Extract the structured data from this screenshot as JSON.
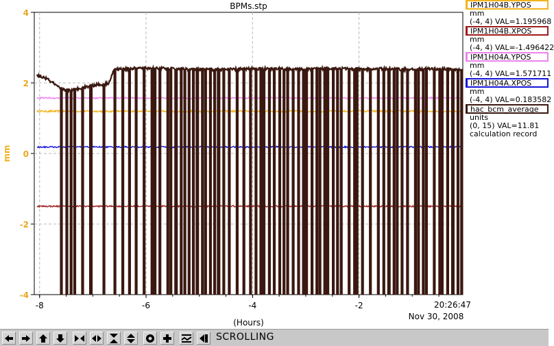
{
  "chart_data": {
    "type": "line",
    "title": "BPMs.stp",
    "xlabel": "(Hours)",
    "ylabel": "mm",
    "xlim": [
      -8.1,
      -0.05
    ],
    "ylim": [
      -4,
      4
    ],
    "x_ticks": [
      -8,
      -6,
      -4,
      -2
    ],
    "y_ticks": [
      -4,
      -2,
      0,
      2,
      4
    ],
    "timestamp_time": "20:26:47",
    "timestamp_date": "Nov 30, 2008",
    "grid": true,
    "colors": {
      "axis_label": "#f0b020",
      "tick_label": "#e8a820"
    },
    "series": [
      {
        "name": "IPM1H04B.YPOS",
        "color": "#f2b31c",
        "level": 1.196,
        "noise": 0.025,
        "units": "mm",
        "range": "(-4, 4)",
        "val": "VAL=1.195968",
        "dropouts": true
      },
      {
        "name": "IPM1H04B.XPOS",
        "color": "#a01c1c",
        "level": -1.496,
        "noise": 0.02,
        "units": "mm",
        "range": "(-4, 4)",
        "val": "VAL=-1.496422",
        "dropouts": false
      },
      {
        "name": "IPM1H04A.YPOS",
        "color": "#ee82ee",
        "level": 1.572,
        "noise": 0.02,
        "units": "mm",
        "range": "(-4, 4)",
        "val": "VAL=1.571711",
        "dropouts": false
      },
      {
        "name": "IPM1H04A.XPOS",
        "color": "#1414dc",
        "level": 0.184,
        "noise": 0.02,
        "units": "mm",
        "range": "(-4, 4)",
        "val": "VAL=0.183582",
        "dropouts": false
      },
      {
        "name": "hac_bcm_average",
        "color": "#3a1810",
        "units": "units",
        "range": "(0, 15)",
        "val": "VAL=11.81",
        "note": "calculation record",
        "profile_x": [
          -8.05,
          -7.9,
          -7.75,
          -7.6,
          -7.5,
          -7.4,
          -7.25,
          -7.1,
          -6.95,
          -6.8,
          -6.7,
          -6.6,
          -6.4,
          -6.0,
          -5.5,
          -5.0,
          -4.5,
          -4.0,
          -3.5,
          -3.0,
          -2.5,
          -2.0,
          -1.5,
          -1.0,
          -0.5,
          -0.05
        ],
        "profile_y": [
          2.2,
          2.15,
          2.0,
          1.82,
          1.8,
          1.78,
          1.85,
          1.9,
          1.95,
          1.95,
          2.0,
          2.38,
          2.4,
          2.42,
          2.4,
          2.38,
          2.38,
          2.4,
          2.4,
          2.38,
          2.42,
          2.38,
          2.4,
          2.38,
          2.4,
          2.36
        ],
        "dropouts": [
          -7.6,
          -7.5,
          -7.42,
          -7.35,
          -7.2,
          -7.05,
          -6.8,
          -6.6,
          -6.45,
          -6.32,
          -6.2,
          -6.05,
          -5.9,
          -5.85,
          -5.75,
          -5.6,
          -5.55,
          -5.45,
          -5.35,
          -5.28,
          -5.2,
          -5.12,
          -5.05,
          -4.95,
          -4.9,
          -4.8,
          -4.72,
          -4.65,
          -4.55,
          -4.45,
          -4.3,
          -4.18,
          -4.05,
          -3.95,
          -3.85,
          -3.8,
          -3.7,
          -3.6,
          -3.5,
          -3.42,
          -3.35,
          -3.25,
          -3.15,
          -3.05,
          -3.0,
          -2.9,
          -2.8,
          -2.75,
          -2.65,
          -2.6,
          -2.5,
          -2.42,
          -2.35,
          -2.2,
          -2.1,
          -2.05,
          -1.95,
          -1.8,
          -1.65,
          -1.55,
          -1.45,
          -1.35,
          -1.3,
          -1.2,
          -1.1,
          -0.95,
          -0.9,
          -0.8,
          -0.75,
          -0.6,
          -0.5,
          -0.45,
          -0.35,
          -0.25,
          -0.15,
          -0.08
        ]
      }
    ]
  },
  "toolbar": {
    "mode_label": "SCROLLING",
    "buttons": [
      "left-arrow-icon",
      "right-arrow-icon",
      "up-arrow-icon",
      "down-arrow-icon",
      "zoom-in-horizontal-icon",
      "zoom-out-horizontal-icon",
      "zoom-in-vertical-icon",
      "zoom-out-vertical-icon",
      "record-icon",
      "add-icon",
      "autoscale-icon",
      "scroll-back-icon"
    ]
  }
}
